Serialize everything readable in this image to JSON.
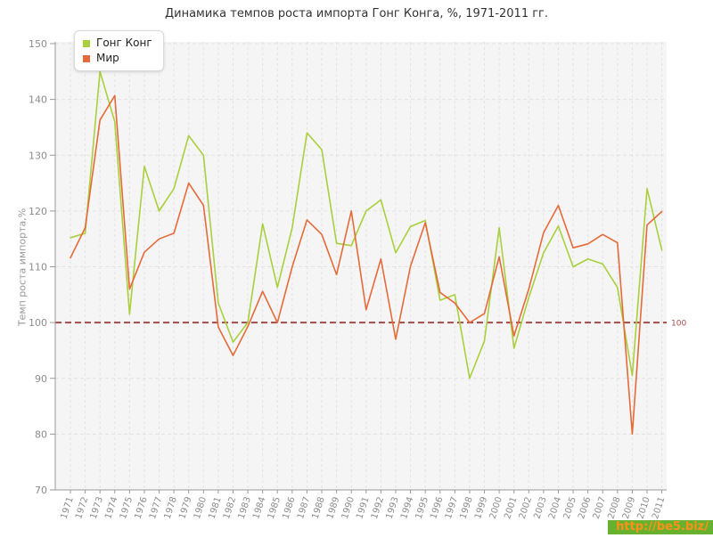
{
  "title": "Динамика темпов роста импорта Гонг Конга, %, 1971-2011 гг.",
  "y_axis_title": "Темп роста импорта,%",
  "legend": {
    "items": [
      {
        "label": "Гонг Конг",
        "color": "#a9cf3d"
      },
      {
        "label": "Мир",
        "color": "#e46a3a"
      }
    ]
  },
  "reference_line": {
    "value": 100,
    "label": "100",
    "color": "#a34b4b"
  },
  "watermark": {
    "text": "http://be5.biz/",
    "bg": "#68b12f",
    "fg": "#ff9018"
  },
  "axis": {
    "tick_color": "#999999",
    "label_color": "#8c8c8c",
    "grid_color": "#e2e2e2",
    "plot_bg": "#f5f5f5"
  },
  "chart_data": {
    "type": "line",
    "title": "Динамика темпов роста импорта Гонг Конга, %, 1971-2011 гг.",
    "xlabel": "",
    "ylabel": "Темп роста импорта,%",
    "ylim": [
      70,
      150
    ],
    "yticks": [
      70,
      80,
      90,
      100,
      110,
      120,
      130,
      140,
      150
    ],
    "grid": true,
    "legend_position": "top-left",
    "x": [
      1971,
      1972,
      1973,
      1974,
      1975,
      1976,
      1977,
      1978,
      1979,
      1980,
      1981,
      1982,
      1983,
      1984,
      1985,
      1986,
      1987,
      1988,
      1989,
      1990,
      1991,
      1992,
      1993,
      1994,
      1995,
      1996,
      1997,
      1998,
      1999,
      2000,
      2001,
      2002,
      2003,
      2004,
      2005,
      2006,
      2007,
      2008,
      2009,
      2010,
      2011
    ],
    "series": [
      {
        "name": "Гонг Конг",
        "color": "#a9cf3d",
        "values": [
          115.2,
          116,
          145,
          136,
          101.5,
          128,
          120,
          124,
          133.5,
          130,
          103.5,
          96.5,
          100,
          117.7,
          106.3,
          117,
          134,
          131,
          114.2,
          113.8,
          120,
          122,
          112.5,
          117.2,
          118.3,
          104,
          105,
          90,
          96.7,
          117,
          95.4,
          104.5,
          112.5,
          117.3,
          110,
          111.4,
          110.5,
          106.3,
          90.5,
          124,
          113
        ]
      },
      {
        "name": "Мир",
        "color": "#e46a3a",
        "values": [
          111.6,
          117,
          136.3,
          140.7,
          106,
          112.6,
          115,
          116,
          125,
          121,
          99.2,
          94.1,
          99.3,
          105.6,
          100,
          110,
          118.4,
          115.8,
          108.6,
          120,
          102.3,
          111.4,
          97,
          110.1,
          117.9,
          105.4,
          103.5,
          100,
          101.6,
          111.8,
          97.6,
          106,
          116.1,
          121,
          113.4,
          114.1,
          115.8,
          114.3,
          80,
          117.5,
          119.9
        ]
      }
    ]
  }
}
